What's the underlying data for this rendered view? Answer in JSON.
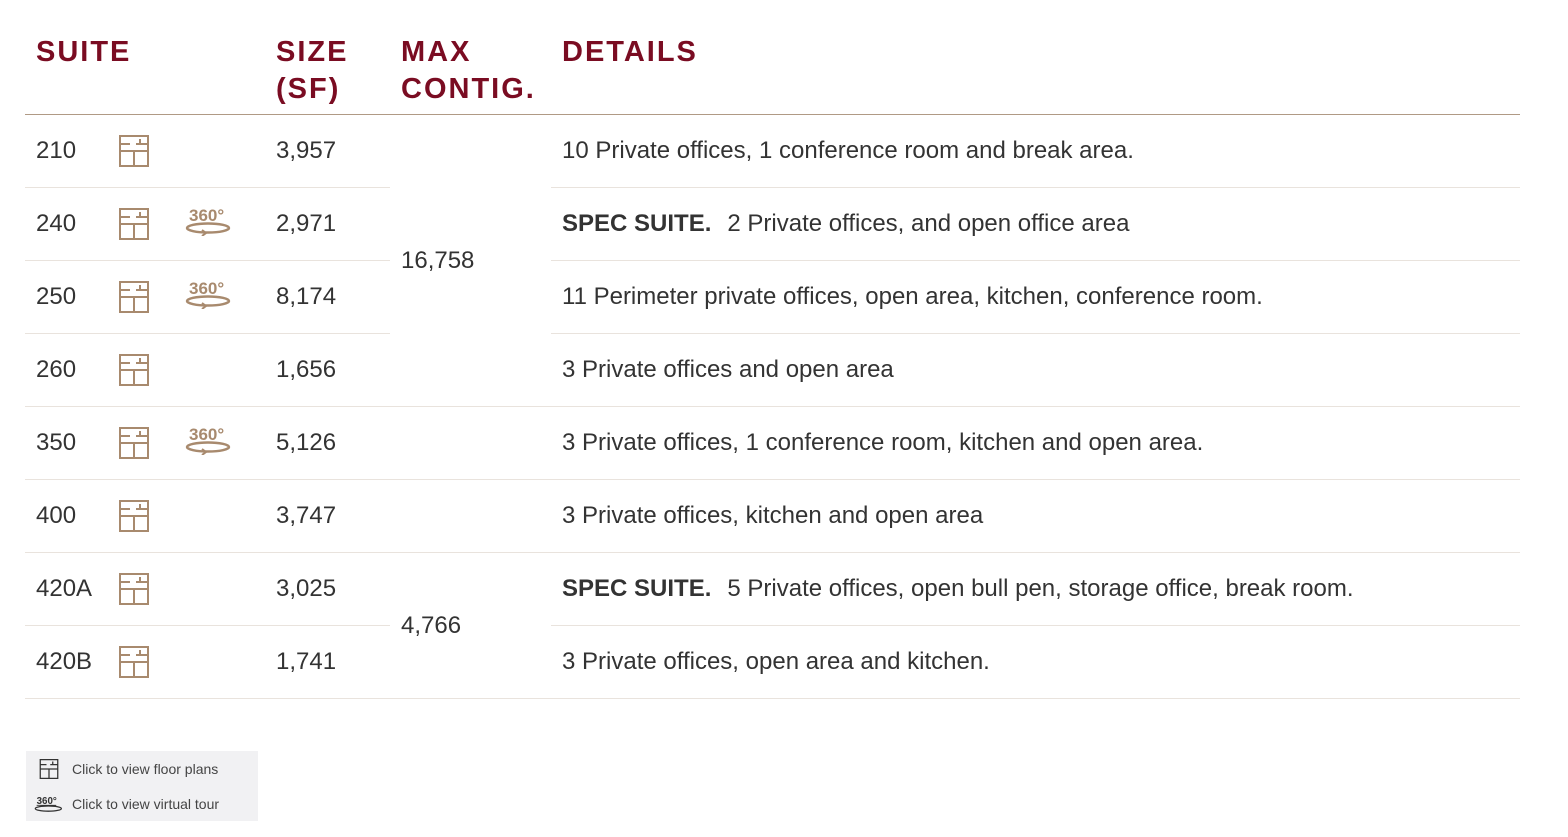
{
  "header": {
    "suite": "SUITE",
    "size": "SIZE (SF)",
    "max_contig": "MAX CONTIG.",
    "details": "DETAILS"
  },
  "colors": {
    "header": "#7a0c22",
    "icon": "#a88a6e",
    "text": "#333333"
  },
  "rows": [
    {
      "suite": "210",
      "floor_plan": true,
      "virtual_tour": false,
      "size": "3,957",
      "spec": "",
      "details": "10 Private offices, 1 conference room and break area."
    },
    {
      "suite": "240",
      "floor_plan": true,
      "virtual_tour": true,
      "size": "2,971",
      "spec": "SPEC SUITE.",
      "details": "2 Private offices, and open office area"
    },
    {
      "suite": "250",
      "floor_plan": true,
      "virtual_tour": true,
      "size": "8,174",
      "spec": "",
      "details": "11 Perimeter private offices, open area, kitchen, conference room."
    },
    {
      "suite": "260",
      "floor_plan": true,
      "virtual_tour": false,
      "size": "1,656",
      "spec": "",
      "details": "3 Private offices and open area"
    },
    {
      "suite": "350",
      "floor_plan": true,
      "virtual_tour": true,
      "size": "5,126",
      "spec": "",
      "details": "3 Private offices, 1 conference room, kitchen and open area."
    },
    {
      "suite": "400",
      "floor_plan": true,
      "virtual_tour": false,
      "size": "3,747",
      "spec": "",
      "details": "3 Private offices, kitchen and open area"
    },
    {
      "suite": "420A",
      "floor_plan": true,
      "virtual_tour": false,
      "size": "3,025",
      "spec": "SPEC SUITE.",
      "details": "5 Private offices, open bull pen, storage office, break room."
    },
    {
      "suite": "420B",
      "floor_plan": true,
      "virtual_tour": false,
      "size": "1,741",
      "spec": "",
      "details": "3 Private offices, open area and kitchen."
    }
  ],
  "max_contig": {
    "group1": "16,758",
    "group2": "4,766"
  },
  "tour_icon_label": "360°",
  "legend": {
    "floor_plans": "Click to view floor plans",
    "virtual_tour": "Click to view virtual tour"
  }
}
